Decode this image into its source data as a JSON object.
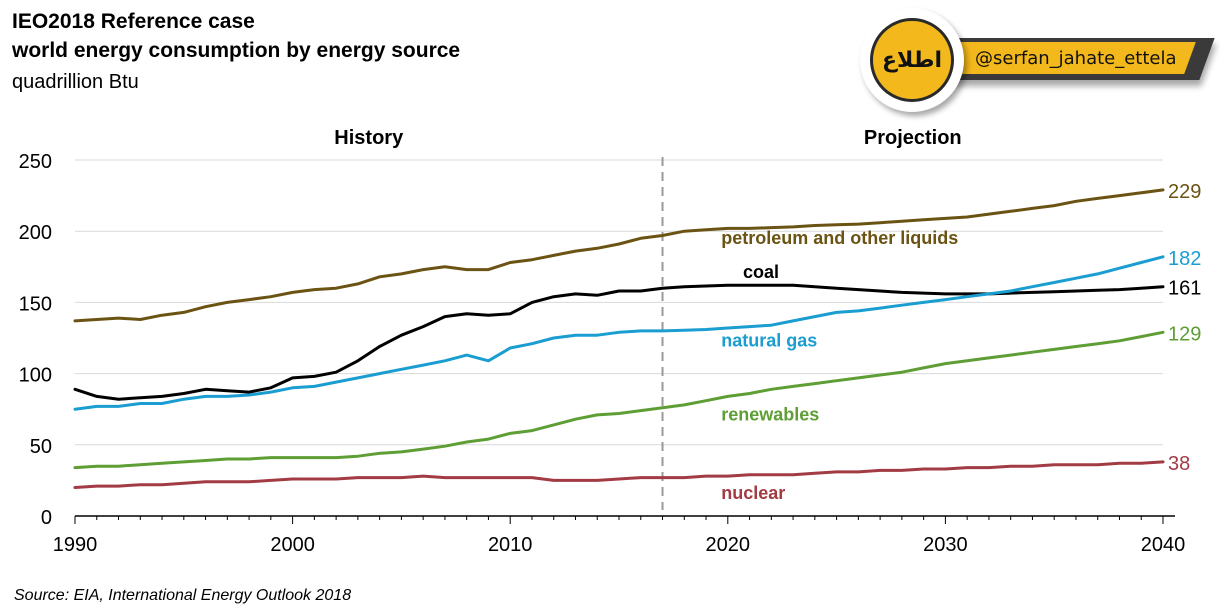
{
  "header": {
    "title_line1": "IEO2018 Reference case",
    "title_line2": "world energy consumption by energy source",
    "unit": "quadrillion Btu"
  },
  "badge": {
    "handle": "@serfan_jahate_ettela",
    "logo_text": "اطلاع",
    "colors": {
      "accent": "#f2b81c",
      "dark": "#3a3a3a"
    }
  },
  "source": "Source:  EIA, International Energy Outlook 2018",
  "chart_data": {
    "type": "line",
    "title": "IEO2018 Reference case world energy consumption by energy source",
    "ylabel": "quadrillion Btu",
    "xlabel": "",
    "ylim": [
      0,
      250
    ],
    "xlim": [
      1990,
      2040
    ],
    "yticks": [
      0,
      50,
      100,
      150,
      200,
      250
    ],
    "xticks": [
      1990,
      2000,
      2010,
      2020,
      2030,
      2040
    ],
    "grid": "horizontal",
    "divider_year": 2017,
    "region_labels": [
      "History",
      "Projection"
    ],
    "x": [
      1990,
      1991,
      1992,
      1993,
      1994,
      1995,
      1996,
      1997,
      1998,
      1999,
      2000,
      2001,
      2002,
      2003,
      2004,
      2005,
      2006,
      2007,
      2008,
      2009,
      2010,
      2011,
      2012,
      2013,
      2014,
      2015,
      2016,
      2017,
      2018,
      2019,
      2020,
      2021,
      2022,
      2023,
      2024,
      2025,
      2026,
      2027,
      2028,
      2029,
      2030,
      2031,
      2032,
      2033,
      2034,
      2035,
      2036,
      2037,
      2038,
      2039,
      2040
    ],
    "series": [
      {
        "name": "petroleum and other liquids",
        "color": "#6b5314",
        "end_label": "229",
        "values": [
          137,
          138,
          139,
          138,
          141,
          143,
          147,
          150,
          152,
          154,
          157,
          159,
          160,
          163,
          168,
          170,
          173,
          175,
          173,
          173,
          178,
          180,
          183,
          186,
          188,
          191,
          195,
          197,
          200,
          201,
          202,
          202,
          202.5,
          203,
          204,
          204.5,
          205,
          206,
          207,
          208,
          209,
          210,
          212,
          214,
          216,
          218,
          221,
          223,
          225,
          227,
          229
        ]
      },
      {
        "name": "coal",
        "color": "#000000",
        "end_label": "161",
        "values": [
          89,
          84,
          82,
          83,
          84,
          86,
          89,
          88,
          87,
          90,
          97,
          98,
          101,
          109,
          119,
          127,
          133,
          140,
          142,
          141,
          142,
          150,
          154,
          156,
          155,
          158,
          158,
          160,
          161,
          161.5,
          162,
          162,
          162,
          162,
          161,
          160,
          159,
          158,
          157,
          156.5,
          156,
          156,
          156,
          156.5,
          157,
          157.5,
          158,
          158.5,
          159,
          160,
          161
        ]
      },
      {
        "name": "natural gas",
        "color": "#1a9dd0",
        "end_label": "182",
        "values": [
          75,
          77,
          77,
          79,
          79,
          82,
          84,
          84,
          85,
          87,
          90,
          91,
          94,
          97,
          100,
          103,
          106,
          109,
          113,
          109,
          118,
          121,
          125,
          127,
          127,
          129,
          130,
          130,
          130.5,
          131,
          132,
          133,
          134,
          137,
          140,
          143,
          144,
          146,
          148,
          150,
          152,
          154,
          156,
          158,
          161,
          164,
          167,
          170,
          174,
          178,
          182
        ]
      },
      {
        "name": "renewables",
        "color": "#5e9e35",
        "end_label": "129",
        "values": [
          34,
          35,
          35,
          36,
          37,
          38,
          39,
          40,
          40,
          41,
          41,
          41,
          41,
          42,
          44,
          45,
          47,
          49,
          52,
          54,
          58,
          60,
          64,
          68,
          71,
          72,
          74,
          76,
          78,
          81,
          84,
          86,
          89,
          91,
          93,
          95,
          97,
          99,
          101,
          104,
          107,
          109,
          111,
          113,
          115,
          117,
          119,
          121,
          123,
          126,
          129
        ]
      },
      {
        "name": "nuclear",
        "color": "#a23b44",
        "end_label": "38",
        "values": [
          20,
          21,
          21,
          22,
          22,
          23,
          24,
          24,
          24,
          25,
          26,
          26,
          26,
          27,
          27,
          27,
          28,
          27,
          27,
          27,
          27,
          27,
          25,
          25,
          25,
          26,
          27,
          27,
          27,
          28,
          28,
          29,
          29,
          29,
          30,
          31,
          31,
          32,
          32,
          33,
          33,
          34,
          34,
          35,
          35,
          36,
          36,
          36,
          37,
          37,
          38
        ]
      }
    ]
  }
}
